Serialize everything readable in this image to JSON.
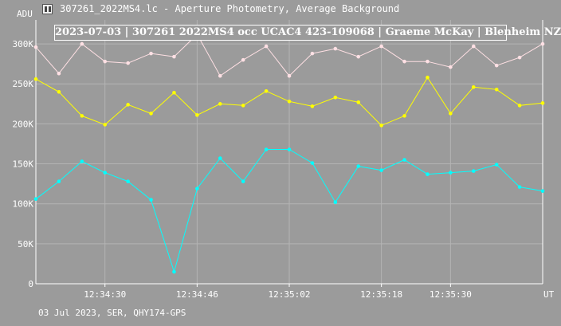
{
  "window": {
    "title": "307261_2022MS4.lc - Aperture Photometry, Average Background",
    "icon": "chart-icon"
  },
  "footer": "03 Jul 2023, SER, QHY174-GPS",
  "chart_data": {
    "type": "line",
    "title": "2023-07-03 | 307261 2022MS4 occ UCAC4 423-109068 | Graeme McKay | Blenheim NZ",
    "ylabel": "ADU",
    "xlabel": "UT",
    "ylim": [
      0,
      330000
    ],
    "y_ticks": [
      {
        "value": 0,
        "label": "0"
      },
      {
        "value": 50000,
        "label": "50K"
      },
      {
        "value": 100000,
        "label": "100K"
      },
      {
        "value": 150000,
        "label": "150K"
      },
      {
        "value": 200000,
        "label": "200K"
      },
      {
        "value": 250000,
        "label": "250K"
      },
      {
        "value": 300000,
        "label": "300K"
      }
    ],
    "x_ticks": [
      {
        "index": 3,
        "label": "12:34:30"
      },
      {
        "index": 7,
        "label": "12:34:46"
      },
      {
        "index": 11,
        "label": "12:35:02"
      },
      {
        "index": 15,
        "label": "12:35:18"
      },
      {
        "index": 18,
        "label": "12:35:30"
      }
    ],
    "grid": true,
    "series": [
      {
        "color": "#ffe0e4",
        "values": [
          296000,
          263000,
          300000,
          278000,
          276000,
          288000,
          284000,
          312000,
          260000,
          280000,
          297000,
          260000,
          288000,
          294000,
          284000,
          297000,
          278000,
          278000,
          271000,
          297000,
          273000,
          283000,
          300000
        ]
      },
      {
        "color": "#ffff00",
        "values": [
          256000,
          240000,
          210000,
          199000,
          224000,
          213000,
          239000,
          211000,
          225000,
          223000,
          241000,
          228000,
          222000,
          233000,
          227000,
          198000,
          210000,
          258000,
          213000,
          246000,
          243000,
          223000,
          226000
        ]
      },
      {
        "color": "#00ffff",
        "values": [
          106000,
          128000,
          153000,
          139000,
          128000,
          105000,
          15000,
          119000,
          157000,
          128000,
          168000,
          168000,
          151000,
          102000,
          147000,
          142000,
          155000,
          137000,
          139000,
          141000,
          149000,
          121000,
          116000
        ]
      }
    ]
  }
}
